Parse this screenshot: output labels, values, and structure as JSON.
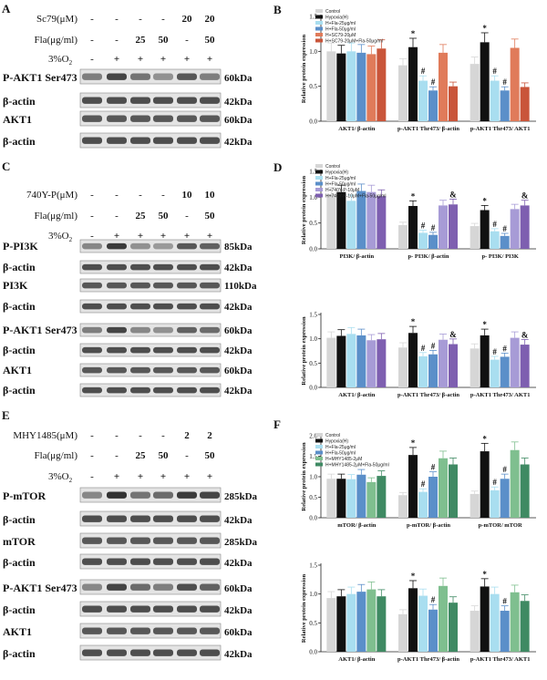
{
  "panels": {
    "A": {
      "letter": "A",
      "conditions": [
        {
          "label": "Sc79(μM)",
          "values": [
            "-",
            "-",
            "-",
            "-",
            "20",
            "20"
          ]
        },
        {
          "label": "Fla(μg/ml)",
          "values": [
            "-",
            "-",
            "25",
            "50",
            "-",
            "50"
          ]
        },
        {
          "label": "3%O2",
          "values": [
            "-",
            "+",
            "+",
            "+",
            "+",
            "+"
          ]
        }
      ],
      "blots": [
        {
          "label": "P-AKT1 Ser473",
          "kda": "60kDa",
          "intensity": [
            0.55,
            0.85,
            0.6,
            0.45,
            0.75,
            0.55
          ]
        },
        {
          "label": "β-actin",
          "kda": "42kDa",
          "intensity": [
            0.8,
            0.8,
            0.8,
            0.8,
            0.8,
            0.8
          ]
        },
        {
          "label": "AKT1",
          "kda": "60kDa",
          "intensity": [
            0.75,
            0.75,
            0.75,
            0.75,
            0.75,
            0.75
          ]
        },
        {
          "label": "β-actin",
          "kda": "42kDa",
          "intensity": [
            0.8,
            0.8,
            0.8,
            0.8,
            0.8,
            0.8
          ]
        }
      ]
    },
    "C": {
      "letter": "C",
      "conditions": [
        {
          "label": "740Y-P(μM)",
          "values": [
            "-",
            "-",
            "-",
            "-",
            "10",
            "10"
          ]
        },
        {
          "label": "Fla(μg/ml)",
          "values": [
            "-",
            "-",
            "25",
            "50",
            "-",
            "50"
          ]
        },
        {
          "label": "3%O2",
          "values": [
            "-",
            "+",
            "+",
            "+",
            "+",
            "+"
          ]
        }
      ],
      "blots": [
        {
          "label": "P-PI3K",
          "kda": "85kDa",
          "intensity": [
            0.5,
            0.9,
            0.45,
            0.4,
            0.75,
            0.7
          ]
        },
        {
          "label": "β-actin",
          "kda": "42kDa",
          "intensity": [
            0.8,
            0.8,
            0.8,
            0.8,
            0.8,
            0.8
          ]
        },
        {
          "label": "PI3K",
          "kda": "110kDa",
          "intensity": [
            0.75,
            0.75,
            0.75,
            0.75,
            0.75,
            0.75
          ]
        },
        {
          "label": "β-actin",
          "kda": "42kDa",
          "intensity": [
            0.8,
            0.8,
            0.8,
            0.8,
            0.8,
            0.8
          ]
        },
        {
          "label": "P-AKT1 Ser473",
          "kda": "60kDa",
          "intensity": [
            0.55,
            0.85,
            0.5,
            0.45,
            0.7,
            0.65
          ]
        },
        {
          "label": "β-actin",
          "kda": "42kDa",
          "intensity": [
            0.8,
            0.8,
            0.8,
            0.8,
            0.8,
            0.8
          ]
        },
        {
          "label": "AKT1",
          "kda": "60kDa",
          "intensity": [
            0.75,
            0.75,
            0.75,
            0.75,
            0.75,
            0.75
          ]
        },
        {
          "label": "β-actin",
          "kda": "42kDa",
          "intensity": [
            0.8,
            0.8,
            0.8,
            0.8,
            0.8,
            0.8
          ]
        }
      ]
    },
    "E": {
      "letter": "E",
      "conditions": [
        {
          "label": "MHY1485(μM)",
          "values": [
            "-",
            "-",
            "-",
            "-",
            "2",
            "2"
          ]
        },
        {
          "label": "Fla(μg/ml)",
          "values": [
            "-",
            "-",
            "25",
            "50",
            "-",
            "50"
          ]
        },
        {
          "label": "3%O2",
          "values": [
            "-",
            "+",
            "+",
            "+",
            "+",
            "+"
          ]
        }
      ],
      "blots": [
        {
          "label": "P-mTOR",
          "kda": "285kDa",
          "intensity": [
            0.5,
            0.95,
            0.6,
            0.65,
            0.9,
            0.85
          ]
        },
        {
          "label": "β-actin",
          "kda": "42kDa",
          "intensity": [
            0.8,
            0.8,
            0.8,
            0.8,
            0.8,
            0.8
          ]
        },
        {
          "label": "mTOR",
          "kda": "285kDa",
          "intensity": [
            0.75,
            0.75,
            0.75,
            0.75,
            0.75,
            0.75
          ]
        },
        {
          "label": "β-actin",
          "kda": "42kDa",
          "intensity": [
            0.8,
            0.8,
            0.8,
            0.8,
            0.8,
            0.8
          ]
        },
        {
          "label": "P-AKT1 Ser473",
          "kda": "60kDa",
          "intensity": [
            0.5,
            0.85,
            0.65,
            0.55,
            0.8,
            0.7
          ]
        },
        {
          "label": "β-actin",
          "kda": "42kDa",
          "intensity": [
            0.8,
            0.8,
            0.8,
            0.8,
            0.8,
            0.8
          ]
        },
        {
          "label": "AKT1",
          "kda": "60kDa",
          "intensity": [
            0.75,
            0.75,
            0.75,
            0.75,
            0.75,
            0.75
          ]
        },
        {
          "label": "β-actin",
          "kda": "42kDa",
          "intensity": [
            0.8,
            0.8,
            0.8,
            0.8,
            0.8,
            0.8
          ]
        }
      ]
    }
  },
  "chart_data": [
    {
      "panel": "B",
      "type": "bar",
      "ylabel": "Relative protein expression",
      "ylim": [
        0,
        1.5
      ],
      "yticks": [
        "0.0",
        "0.5",
        "1.0",
        "1.5"
      ],
      "categories": [
        "AKT1/ β-actin",
        "p-AKT1 Thr473/ β-actin",
        "p-AKT1 Thr473/ AKT1"
      ],
      "legend": [
        "Control",
        "Hypoxia(H)",
        "H+Fla-25μg/ml",
        "H+Fla-50μg/ml",
        "H+SC79-20μM",
        "H+SC79-20μM+Fla-50μg/ml"
      ],
      "colors": [
        "#d6d6d6",
        "#111111",
        "#a9def0",
        "#5b8fc9",
        "#e07b5a",
        "#c9553a"
      ],
      "series_values": [
        [
          1.0,
          0.97,
          1.0,
          0.98,
          0.96,
          1.04
        ],
        [
          0.8,
          1.06,
          0.58,
          0.44,
          0.98,
          0.5
        ],
        [
          0.82,
          1.13,
          0.58,
          0.44,
          1.05,
          0.49
        ]
      ],
      "marks": [
        [
          "",
          "",
          "",
          "",
          "",
          ""
        ],
        [
          "",
          "*",
          "#",
          "#",
          "",
          ""
        ],
        [
          "",
          "*",
          "#",
          "#",
          "",
          ""
        ]
      ]
    },
    {
      "panel": "D-top",
      "type": "bar",
      "ylabel": "Relative protein expression",
      "ylim": [
        0,
        1.5
      ],
      "yticks": [
        "0.0",
        "0.5",
        "1.0",
        "1.5"
      ],
      "categories": [
        "PI3K/ β-actin",
        "p- PI3K/ β-actin",
        "p- PI3K/ PI3K"
      ],
      "legend": [
        "Control",
        "Hypoxia(H)",
        "H+Fla-25μg/ml",
        "H+Fla-50μg/ml",
        "H+740Y-P-10μM",
        "H+740Y-P-10μM+Fla-50μg/ml"
      ],
      "colors": [
        "#d6d6d6",
        "#111111",
        "#a9def0",
        "#5b8fc9",
        "#a79bd6",
        "#7e5fb0"
      ],
      "series_values": [
        [
          1.06,
          1.1,
          0.93,
          1.12,
          1.1,
          1.02
        ],
        [
          0.46,
          0.83,
          0.31,
          0.27,
          0.84,
          0.86
        ],
        [
          0.44,
          0.75,
          0.34,
          0.25,
          0.77,
          0.84
        ]
      ],
      "marks": [
        [
          "",
          "",
          "",
          "",
          "",
          ""
        ],
        [
          "",
          "*",
          "#",
          "#",
          "",
          "&"
        ],
        [
          "",
          "*",
          "#",
          "#",
          "",
          "&"
        ]
      ]
    },
    {
      "panel": "D-bottom",
      "type": "bar",
      "ylabel": "Relative protein expression",
      "ylim": [
        0,
        1.5
      ],
      "yticks": [
        "0.0",
        "0.5",
        "1.0",
        "1.5"
      ],
      "categories": [
        "AKT1/ β-actin",
        "p-AKT1 Thr473/ β-actin",
        "p-AKT1 Thr473/ AKT1"
      ],
      "colors": [
        "#d6d6d6",
        "#111111",
        "#a9def0",
        "#5b8fc9",
        "#a79bd6",
        "#7e5fb0"
      ],
      "series_values": [
        [
          1.02,
          1.06,
          1.1,
          1.07,
          0.97,
          0.99
        ],
        [
          0.82,
          1.12,
          0.64,
          0.68,
          0.98,
          0.89
        ],
        [
          0.8,
          1.07,
          0.57,
          0.63,
          1.02,
          0.88
        ]
      ],
      "marks": [
        [
          "",
          "",
          "",
          "",
          "",
          ""
        ],
        [
          "",
          "*",
          "#",
          "#",
          "",
          "&"
        ],
        [
          "",
          "*",
          "#",
          "#",
          "",
          "&"
        ]
      ]
    },
    {
      "panel": "F-top",
      "type": "bar",
      "ylabel": "Relative protein expression",
      "ylim": [
        0,
        2.0
      ],
      "yticks": [
        "0.0",
        "0.5",
        "1.0",
        "1.5",
        "2.0"
      ],
      "categories": [
        "mTOR/ β-actin",
        "p-mTOR/ β-actin",
        "p-mTOR/ mTOR"
      ],
      "legend": [
        "Control",
        "Hypoxia(H)",
        "H+Fla-25μg/ml",
        "H+Fla-50μg/ml",
        "H+MHY1485-2μM",
        "H+MHY1485-2μM+Fla-50μg/ml"
      ],
      "colors": [
        "#d6d6d6",
        "#111111",
        "#a9def0",
        "#5b8fc9",
        "#7fbf8f",
        "#3f8a63"
      ],
      "series_values": [
        [
          0.95,
          0.95,
          0.94,
          1.05,
          0.87,
          1.02
        ],
        [
          0.55,
          1.53,
          0.63,
          1.0,
          1.45,
          1.3
        ],
        [
          0.58,
          1.62,
          0.67,
          0.95,
          1.65,
          1.3
        ]
      ],
      "marks": [
        [
          "",
          "",
          "",
          "",
          "",
          ""
        ],
        [
          "",
          "*",
          "#",
          "#",
          "",
          ""
        ],
        [
          "",
          "*",
          "#",
          "#",
          "",
          ""
        ]
      ]
    },
    {
      "panel": "F-bottom",
      "type": "bar",
      "ylabel": "Relative protein expression",
      "ylim": [
        0,
        1.5
      ],
      "yticks": [
        "0.0",
        "0.5",
        "1.0",
        "1.5"
      ],
      "categories": [
        "AKT1/ β-actin",
        "p-AKT1 Thr473/ β-actin",
        "p-AKT1 Thr473/ AKT1"
      ],
      "colors": [
        "#d6d6d6",
        "#111111",
        "#a9def0",
        "#5b8fc9",
        "#7fbf8f",
        "#3f8a63"
      ],
      "series_values": [
        [
          0.93,
          0.96,
          1.0,
          1.04,
          1.08,
          0.96
        ],
        [
          0.65,
          1.1,
          0.97,
          0.73,
          1.14,
          0.85
        ],
        [
          0.71,
          1.13,
          1.0,
          0.71,
          1.03,
          0.88
        ]
      ],
      "marks": [
        [
          "",
          "",
          "",
          "",
          "",
          ""
        ],
        [
          "",
          "*",
          "",
          "#",
          "",
          ""
        ],
        [
          "",
          "*",
          "",
          "#",
          "",
          ""
        ]
      ]
    }
  ]
}
